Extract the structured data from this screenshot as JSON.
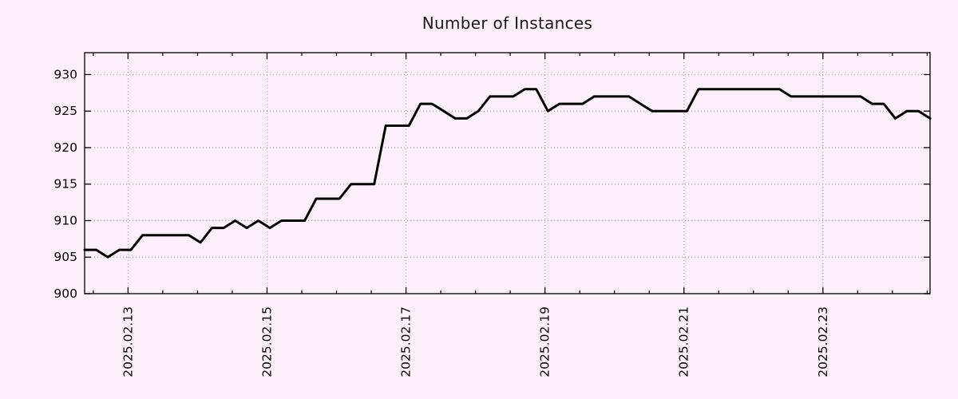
{
  "chart_data": {
    "type": "line",
    "title": "Number of Instances",
    "xlabel": "",
    "ylabel": "",
    "legend": "none",
    "grid": "dotted, at major ticks only",
    "background_color": "#fdf0fa",
    "line_color": "#000000",
    "grid_color": "#a3a3a3",
    "border_color": "#000000",
    "ylim": [
      900,
      933
    ],
    "y_ticks": [
      900,
      905,
      910,
      915,
      920,
      925,
      930
    ],
    "x_start": "2025-02-12 09:00",
    "x_step_hours": 4,
    "x_total_hours": 292,
    "x_tick_labels": [
      "2025.02.13",
      "2025.02.15",
      "2025.02.17",
      "2025.02.19",
      "2025.02.21",
      "2025.02.23"
    ],
    "x_tick_offsets_hours": [
      15,
      63,
      111,
      159,
      207,
      255
    ],
    "x_minor_tick_every_hours": 12,
    "x_minor_tick_first_offset_hours": 3,
    "values": [
      906,
      906,
      905,
      906,
      906,
      908,
      908,
      908,
      908,
      908,
      907,
      909,
      909,
      910,
      909,
      910,
      909,
      910,
      910,
      910,
      913,
      913,
      913,
      915,
      915,
      915,
      923,
      923,
      923,
      926,
      926,
      925,
      924,
      924,
      925,
      927,
      927,
      927,
      928,
      928,
      925,
      926,
      926,
      926,
      927,
      927,
      927,
      927,
      926,
      925,
      925,
      925,
      925,
      928,
      928,
      928,
      928,
      928,
      928,
      928,
      928,
      927,
      927,
      927,
      927,
      927,
      927,
      927,
      926,
      926,
      924,
      925,
      925,
      924
    ]
  }
}
